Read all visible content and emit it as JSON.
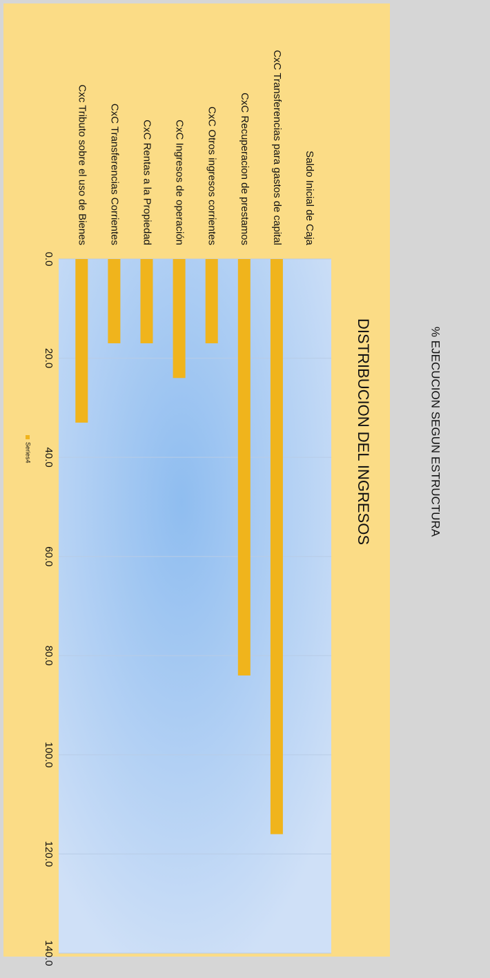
{
  "chart_data": {
    "type": "bar",
    "orientation": "horizontal",
    "title": "% EJECUCION SEGUN ESTRUCTURA",
    "subtitle": "DISTRIBUCION  DEL  INGRESOS",
    "categories": [
      "Saldo Inicial de Caja",
      "CxC Transferencias para gastos de capital",
      "CxC Recuperacion de prestamos",
      "CxC Otros ingresos corrientes",
      "CxC Ingresos de operación",
      "CxC Rentas a la Propiedad",
      "CxC Transferencias Corrientes",
      "Cxc Tributo sobre el uso de Bienes"
    ],
    "series": [
      {
        "name": "Series4",
        "color": "#f0b41c",
        "values": [
          0,
          116,
          84,
          17,
          24,
          17,
          17,
          33
        ]
      }
    ],
    "xlim": [
      0,
      140
    ],
    "xticks": [
      {
        "value": 0,
        "label": "0.0"
      },
      {
        "value": 20,
        "label": "20.0"
      },
      {
        "value": 40,
        "label": "40.0"
      },
      {
        "value": 60,
        "label": "60.0"
      },
      {
        "value": 80,
        "label": "80.0"
      },
      {
        "value": 100,
        "label": "100.0"
      },
      {
        "value": 120,
        "label": "120.0"
      },
      {
        "value": 140,
        "label": "140.0"
      }
    ],
    "grid": true,
    "legend": "bottom"
  }
}
